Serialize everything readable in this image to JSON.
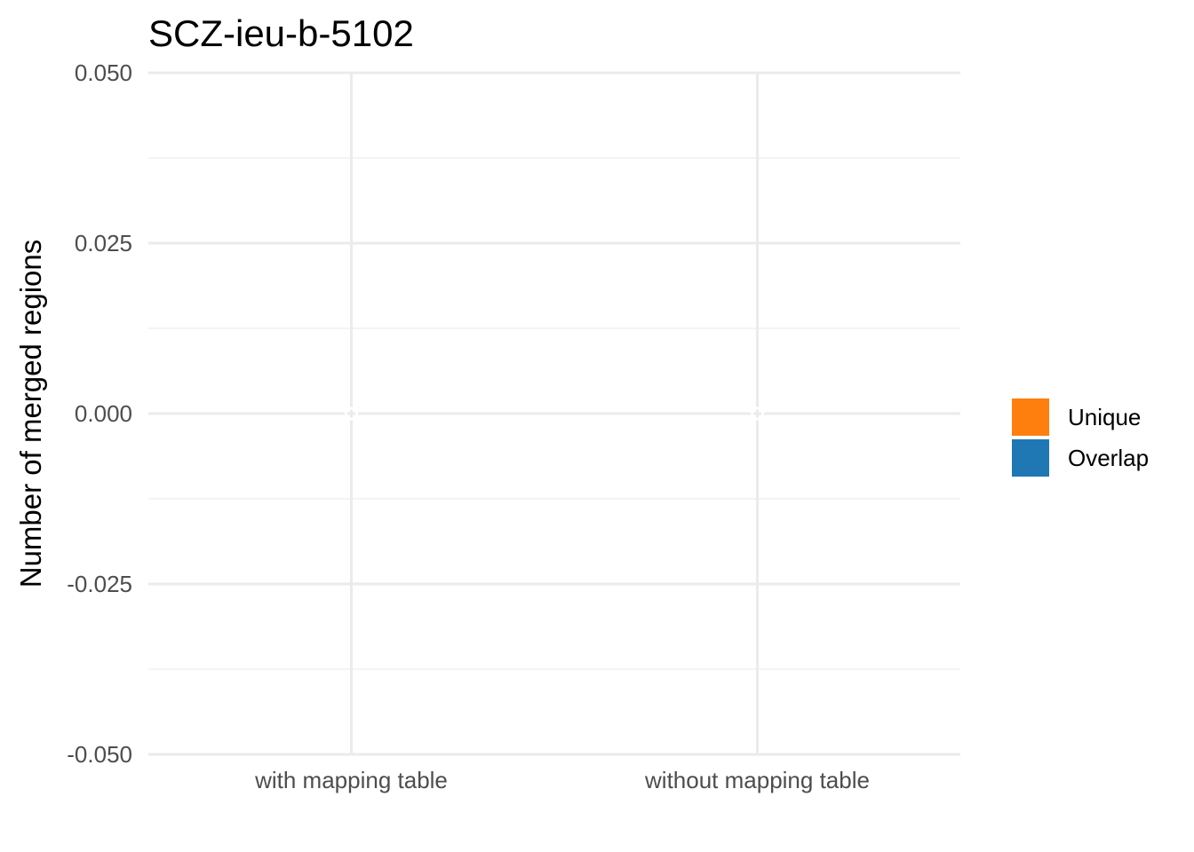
{
  "chart_data": {
    "type": "bar",
    "title": "SCZ-ieu-b-5102",
    "xlabel": "",
    "ylabel": "Number of merged regions",
    "categories": [
      "with mapping table",
      "without mapping table"
    ],
    "series": [
      {
        "name": "Unique",
        "color": "#ff7f0e",
        "values": [
          0,
          0
        ]
      },
      {
        "name": "Overlap",
        "color": "#1f77b4",
        "values": [
          0,
          0
        ]
      }
    ],
    "stacked": true,
    "ylim": [
      -0.05,
      0.05
    ],
    "yticks": [
      -0.05,
      -0.025,
      0,
      0.025,
      0.05
    ],
    "ytick_labels": [
      "-0.050",
      "-0.025",
      "0.000",
      "0.025",
      "0.050"
    ],
    "grid": true,
    "legend_position": "right"
  }
}
